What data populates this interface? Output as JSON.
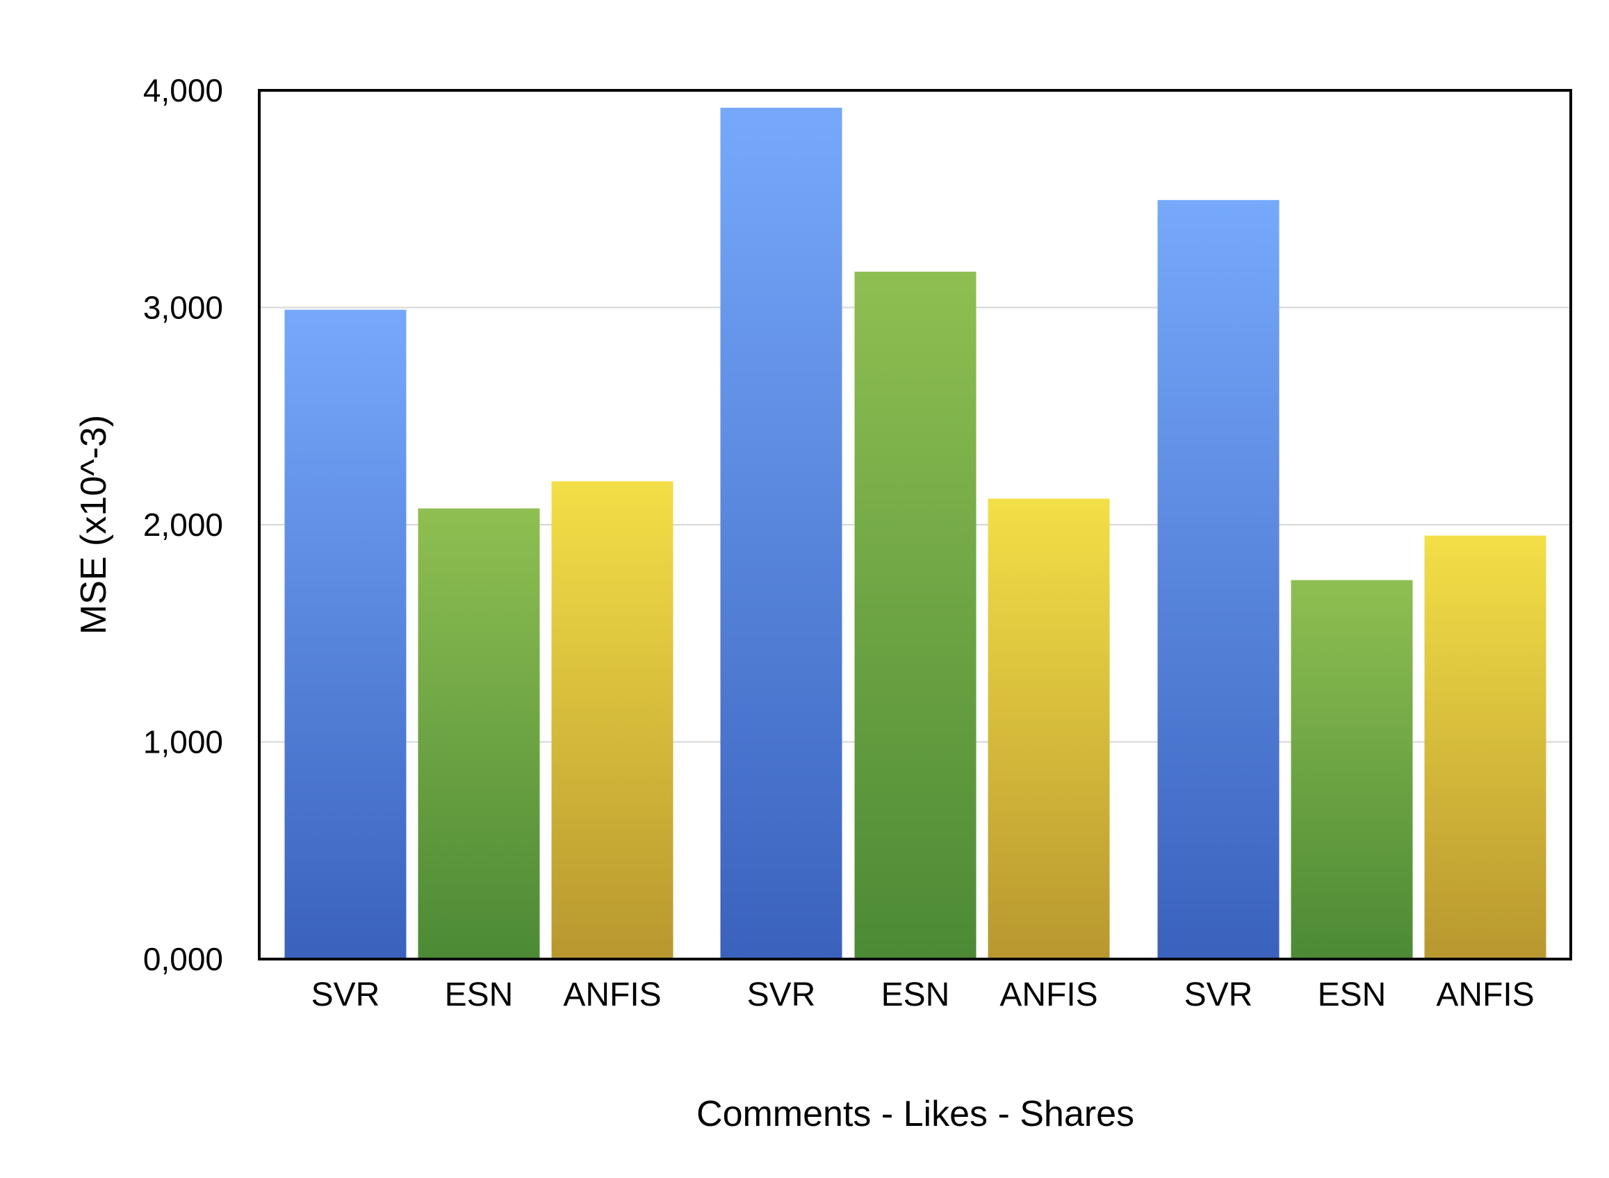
{
  "chart_data": {
    "type": "bar",
    "title": "",
    "xlabel": "Comments - Likes - Shares",
    "ylabel": "MSE (x10^-3)",
    "ylim": [
      0,
      4000
    ],
    "yticks": [
      0,
      1000,
      2000,
      3000,
      4000
    ],
    "ytick_labels": [
      "0,000",
      "1,000",
      "2,000",
      "3,000",
      "4,000"
    ],
    "grid": true,
    "legend": "none",
    "groups": [
      {
        "categories": [
          "SVR",
          "ESN",
          "ANFIS"
        ],
        "values": [
          2990,
          2075,
          2200
        ]
      },
      {
        "categories": [
          "SVR",
          "ESN",
          "ANFIS"
        ],
        "values": [
          3920,
          3165,
          2120
        ]
      },
      {
        "categories": [
          "SVR",
          "ESN",
          "ANFIS"
        ],
        "values": [
          3495,
          1745,
          1950
        ]
      }
    ],
    "colors": {
      "SVR": [
        "#76a9fb",
        "#3a62bd"
      ],
      "ESN": [
        "#8fbf52",
        "#4c8a35"
      ],
      "ANFIS": [
        "#f3df47",
        "#b8982f"
      ]
    }
  }
}
